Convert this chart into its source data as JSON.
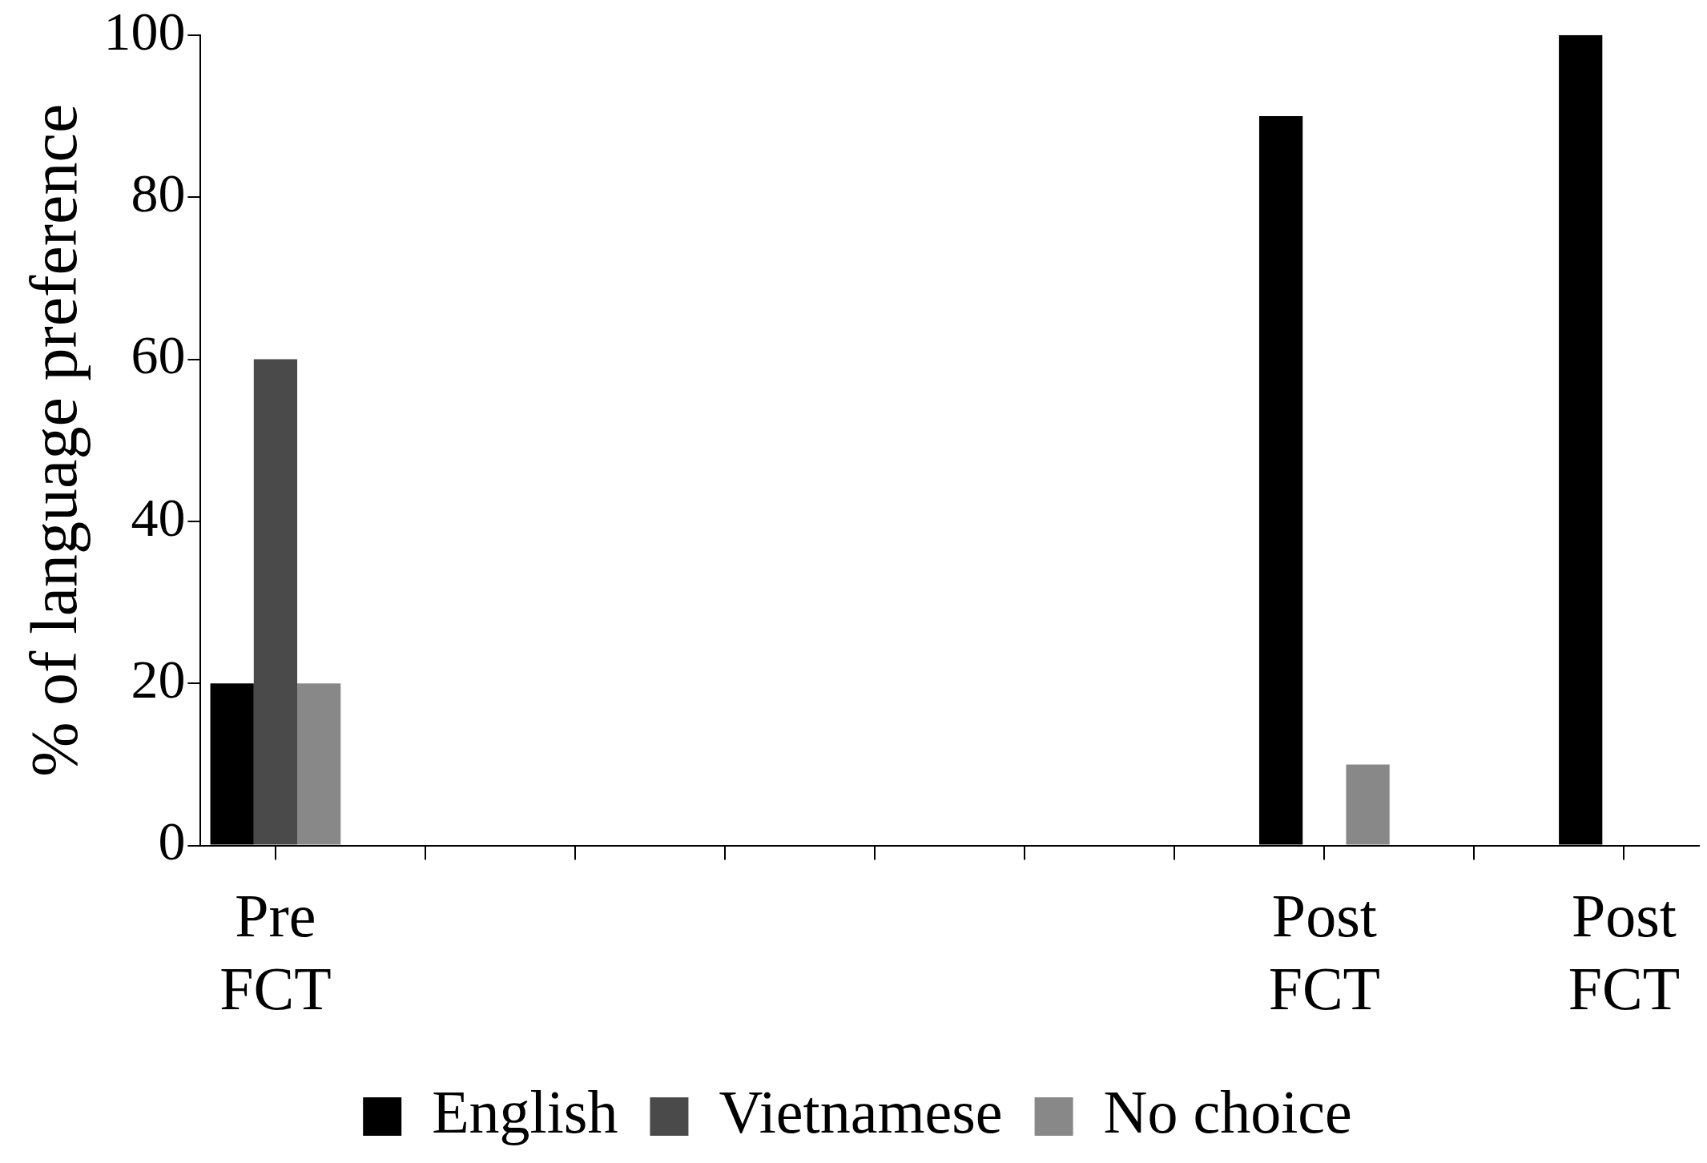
{
  "chart_data": {
    "type": "bar",
    "ylabel": "% of language preference",
    "categories": [
      "Pre FCT",
      null,
      null,
      null,
      null,
      null,
      null,
      "Post FCT",
      null,
      "Post FCT"
    ],
    "series": [
      {
        "name": "English",
        "color": "#000000",
        "values": [
          20,
          null,
          null,
          null,
          null,
          null,
          null,
          90,
          null,
          100
        ]
      },
      {
        "name": "Vietnamese",
        "color": "#4a4a4a",
        "values": [
          60,
          null,
          null,
          null,
          null,
          null,
          null,
          null,
          null,
          null
        ]
      },
      {
        "name": "No choice",
        "color": "#888888",
        "values": [
          20,
          null,
          null,
          null,
          null,
          null,
          null,
          10,
          null,
          null
        ]
      }
    ],
    "ylim": [
      0,
      100
    ],
    "yticks": [
      0,
      20,
      40,
      60,
      80,
      100
    ],
    "grid": false,
    "legend": "bottom"
  }
}
